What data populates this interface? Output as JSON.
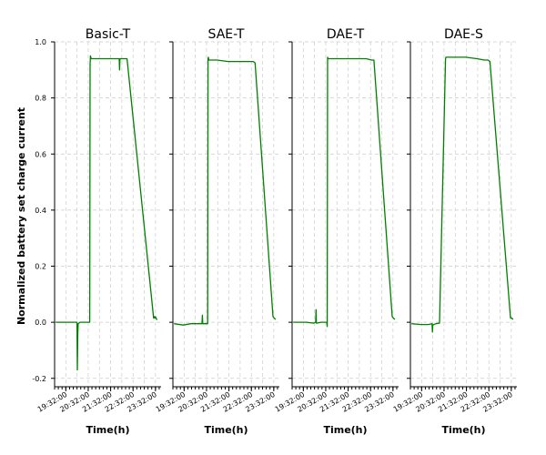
{
  "chart_data": [
    {
      "type": "line",
      "title": "Basic-T",
      "xlabel": "Time(h)",
      "ylabel": "Normalized battery set charge current",
      "ylim": [
        -0.23,
        1.0
      ],
      "yticks": [
        1.0,
        0.8,
        0.6,
        0.4,
        0.2,
        0.0,
        -0.2
      ],
      "ytick_labels": [
        "1.0",
        "0.8",
        "0.6",
        "0.4",
        "0.2",
        "0.0",
        "-0.2"
      ],
      "xlim": [
        "19:02",
        "23:47"
      ],
      "xtick_labels": [
        "19:32:00",
        "20:32:00",
        "21:32:00",
        "22:32:00",
        "23:32:00"
      ],
      "grid": true,
      "color": "#008000",
      "series": [
        {
          "x": [
            "19:05",
            "20:00",
            "20:02",
            "20:03",
            "20:04",
            "20:05",
            "20:10",
            "20:20",
            "20:36",
            "20:37",
            "20:38",
            "20:40",
            "20:50",
            "21:10",
            "21:30",
            "21:55",
            "21:56",
            "21:57",
            "21:58",
            "22:00",
            "22:15",
            "22:16",
            "23:27",
            "23:29",
            "23:30",
            "23:32",
            "23:35",
            "23:37"
          ],
          "y": [
            0.0,
            0.0,
            0.0,
            -0.17,
            -0.04,
            -0.005,
            0.0,
            0.0,
            0.0,
            0.92,
            0.95,
            0.94,
            0.94,
            0.94,
            0.94,
            0.94,
            0.9,
            0.94,
            0.94,
            0.94,
            0.94,
            0.94,
            0.015,
            0.02,
            0.015,
            0.02,
            0.01,
            0.01
          ]
        }
      ]
    },
    {
      "type": "line",
      "title": "SAE-T",
      "xlabel": "Time(h)",
      "ylim": [
        -0.23,
        1.0
      ],
      "xlim": [
        "19:02",
        "23:47"
      ],
      "xtick_labels": [
        "19:32:00",
        "20:32:00",
        "21:32:00",
        "22:32:00",
        "23:32:00"
      ],
      "grid": true,
      "color": "#008000",
      "series": [
        {
          "x": [
            "19:05",
            "19:30",
            "19:50",
            "20:10",
            "20:20",
            "20:21",
            "20:22",
            "20:35",
            "20:36",
            "20:37",
            "20:38",
            "20:40",
            "21:00",
            "21:30",
            "22:00",
            "22:20",
            "22:37",
            "22:42",
            "23:30",
            "23:33",
            "23:37"
          ],
          "y": [
            -0.005,
            -0.01,
            -0.005,
            -0.005,
            -0.005,
            0.025,
            -0.005,
            -0.005,
            0.94,
            0.945,
            0.935,
            0.935,
            0.935,
            0.93,
            0.93,
            0.93,
            0.93,
            0.925,
            0.02,
            0.015,
            0.01
          ]
        }
      ]
    },
    {
      "type": "line",
      "title": "DAE-T",
      "xlabel": "Time(h)",
      "ylim": [
        -0.23,
        1.0
      ],
      "xlim": [
        "19:02",
        "23:47"
      ],
      "xtick_labels": [
        "19:32:00",
        "20:32:00",
        "21:32:00",
        "22:32:00",
        "23:32:00"
      ],
      "grid": true,
      "color": "#008000",
      "series": [
        {
          "x": [
            "19:05",
            "19:40",
            "20:00",
            "20:05",
            "20:06",
            "20:07",
            "20:20",
            "20:35",
            "20:36",
            "20:37",
            "20:38",
            "20:40",
            "21:00",
            "21:30",
            "22:00",
            "22:20",
            "22:35",
            "22:41",
            "23:30",
            "23:33",
            "23:37"
          ],
          "y": [
            0.0,
            0.0,
            -0.003,
            0.0,
            0.045,
            -0.003,
            0.0,
            0.0,
            -0.015,
            0.945,
            0.94,
            0.94,
            0.94,
            0.94,
            0.94,
            0.94,
            0.935,
            0.935,
            0.02,
            0.015,
            0.01
          ]
        }
      ]
    },
    {
      "type": "line",
      "title": "DAE-S",
      "xlabel": "Time(h)",
      "ylim": [
        -0.23,
        1.0
      ],
      "xlim": [
        "19:02",
        "23:47"
      ],
      "xtick_labels": [
        "19:32:00",
        "20:32:00",
        "21:32:00",
        "22:32:00",
        "23:32:00"
      ],
      "grid": true,
      "color": "#008000",
      "series": [
        {
          "x": [
            "19:05",
            "19:30",
            "19:50",
            "20:00",
            "20:01",
            "20:02",
            "20:10",
            "20:20",
            "20:36",
            "20:37",
            "21:00",
            "21:30",
            "22:00",
            "22:20",
            "22:30",
            "22:35",
            "23:30",
            "23:33",
            "23:37"
          ],
          "y": [
            -0.005,
            -0.008,
            -0.008,
            -0.005,
            -0.035,
            -0.01,
            -0.005,
            -0.003,
            0.94,
            0.945,
            0.945,
            0.945,
            0.94,
            0.935,
            0.935,
            0.93,
            0.015,
            0.015,
            0.01
          ]
        }
      ]
    }
  ]
}
